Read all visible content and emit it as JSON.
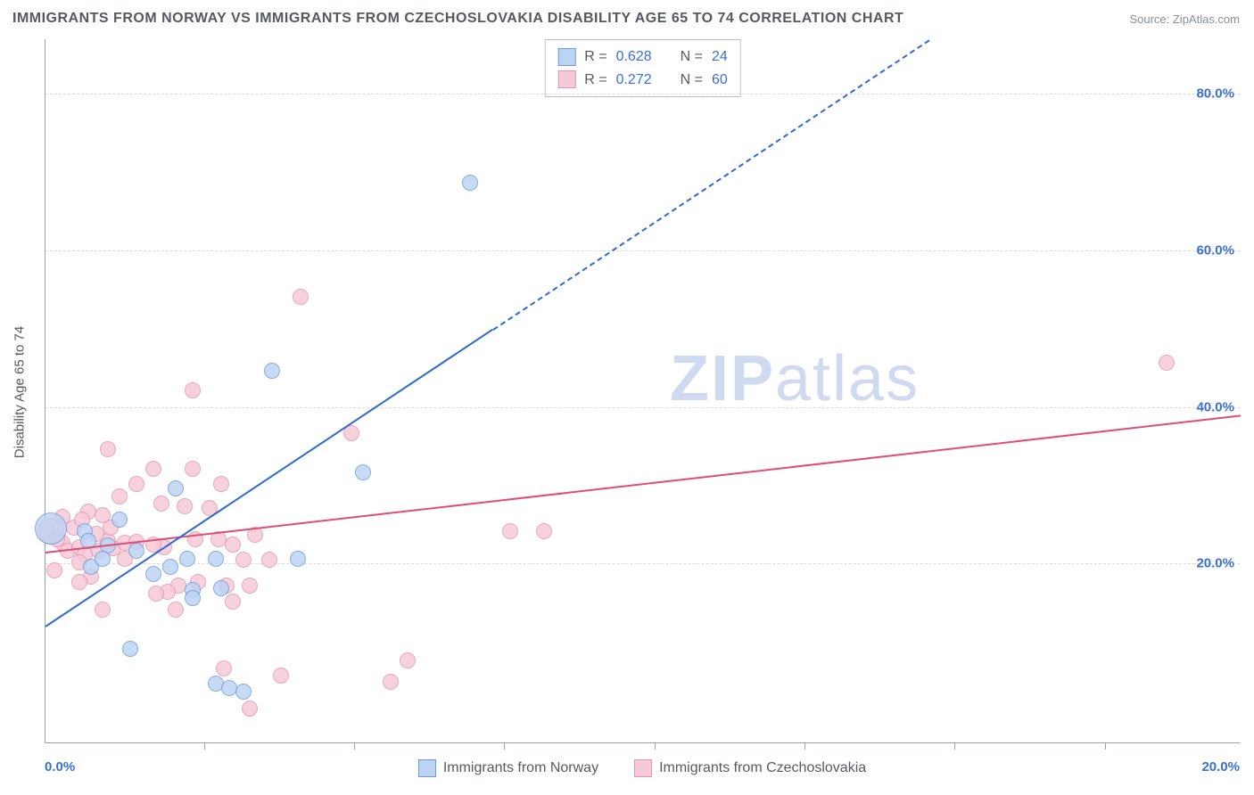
{
  "title": "IMMIGRANTS FROM NORWAY VS IMMIGRANTS FROM CZECHOSLOVAKIA DISABILITY AGE 65 TO 74 CORRELATION CHART",
  "source_label": "Source: ",
  "source_name": "ZipAtlas.com",
  "ylabel": "Disability Age 65 to 74",
  "watermark_a": "ZIP",
  "watermark_b": "atlas",
  "watermark_color": "#cfd9ef",
  "chart": {
    "type": "scatter",
    "background_color": "#ffffff",
    "grid_color": "#d8dbe0",
    "axis_color": "#9aa0aa",
    "xlim": [
      -0.6,
      20.5
    ],
    "ylim": [
      -3,
      87
    ],
    "y_ticks": [
      20,
      40,
      60,
      80
    ],
    "y_tick_labels": [
      "20.0%",
      "40.0%",
      "60.0%",
      "80.0%"
    ],
    "x_ticks_minor": [
      2.2,
      4.85,
      7.5,
      10.15,
      12.8,
      15.45,
      18.1
    ],
    "x_tick_labels": [
      {
        "val": -0.6,
        "text": "0.0%"
      },
      {
        "val": 20.5,
        "text": "20.0%"
      }
    ],
    "y_label_fontsize": 15,
    "tick_label_fontsize": 15,
    "tick_label_color": "#3b6fd6",
    "legend_top": {
      "rows": [
        {
          "swatch_fill": "#bcd3f2",
          "swatch_border": "#6a9de0",
          "r_label": "R =",
          "r_val": "0.628",
          "n_label": "N =",
          "n_val": "24"
        },
        {
          "swatch_fill": "#f6c9d6",
          "swatch_border": "#e594b1",
          "r_label": "R =",
          "r_val": "0.272",
          "n_label": "N =",
          "n_val": "60"
        }
      ]
    },
    "legend_bottom": [
      {
        "swatch_fill": "#bcd3f2",
        "swatch_border": "#6a9de0",
        "label": "Immigrants from Norway"
      },
      {
        "swatch_fill": "#f6c9d6",
        "swatch_border": "#e594b1",
        "label": "Immigrants from Czechoslovakia"
      }
    ],
    "series": [
      {
        "name": "norway",
        "color_fill": "#bcd3f2",
        "color_border": "#6a9de0",
        "marker_radius": 9,
        "points": [
          [
            -0.5,
            24.3,
            18
          ],
          [
            0.7,
            25.5
          ],
          [
            1.3,
            18.5
          ],
          [
            1.6,
            19.5
          ],
          [
            1.0,
            21.5
          ],
          [
            1.9,
            20.5
          ],
          [
            2.4,
            4.5
          ],
          [
            2.9,
            3.5
          ],
          [
            2.65,
            4.0
          ],
          [
            0.9,
            9.0
          ],
          [
            5.0,
            31.5
          ],
          [
            1.7,
            29.5
          ],
          [
            2.4,
            20.5
          ],
          [
            3.85,
            20.5
          ],
          [
            2.0,
            16.5
          ],
          [
            2.5,
            16.7
          ],
          [
            2.0,
            15.5
          ],
          [
            0.1,
            24.0
          ],
          [
            0.15,
            22.8
          ],
          [
            0.5,
            22.2
          ],
          [
            3.4,
            44.5
          ],
          [
            6.9,
            68.5
          ],
          [
            0.2,
            19.5
          ],
          [
            0.4,
            20.5
          ]
        ],
        "trend": {
          "x1": -0.6,
          "y1": 12.0,
          "x2": 7.3,
          "y2": 50.0,
          "x2_dash": 15.0,
          "y2_dash": 87.0,
          "color": "#2f6ad0",
          "width": 2.5
        }
      },
      {
        "name": "czech",
        "color_fill": "#f6c9d6",
        "color_border": "#e594b1",
        "marker_radius": 9,
        "points": [
          [
            -0.5,
            24.0,
            15
          ],
          [
            -0.3,
            22.5
          ],
          [
            -0.2,
            21.5
          ],
          [
            0.0,
            22.0
          ],
          [
            0.1,
            21.0
          ],
          [
            0.35,
            21.5
          ],
          [
            0.6,
            21.8
          ],
          [
            0.5,
            22.7
          ],
          [
            0.8,
            22.5
          ],
          [
            1.0,
            22.6
          ],
          [
            -0.1,
            24.5
          ],
          [
            0.15,
            26.5
          ],
          [
            0.4,
            26.0
          ],
          [
            0.7,
            28.5
          ],
          [
            0.5,
            34.5
          ],
          [
            1.3,
            32.0
          ],
          [
            1.0,
            30.0
          ],
          [
            1.45,
            27.5
          ],
          [
            1.85,
            27.2
          ],
          [
            2.3,
            27.0
          ],
          [
            2.0,
            32.0
          ],
          [
            1.5,
            22.0
          ],
          [
            1.3,
            22.3
          ],
          [
            2.05,
            23.0
          ],
          [
            2.45,
            23.0
          ],
          [
            2.7,
            22.3
          ],
          [
            2.6,
            17.0
          ],
          [
            2.7,
            15.0
          ],
          [
            2.1,
            17.5
          ],
          [
            1.75,
            17.0
          ],
          [
            1.55,
            16.2
          ],
          [
            1.35,
            16.0
          ],
          [
            1.7,
            14.0
          ],
          [
            3.0,
            17.0
          ],
          [
            2.9,
            20.3
          ],
          [
            3.35,
            20.3
          ],
          [
            3.1,
            23.5
          ],
          [
            3.0,
            1.3
          ],
          [
            2.55,
            6.5
          ],
          [
            3.55,
            5.5
          ],
          [
            5.5,
            4.8
          ],
          [
            5.8,
            7.5
          ],
          [
            2.0,
            42.0
          ],
          [
            3.9,
            54.0
          ],
          [
            4.8,
            36.5
          ],
          [
            2.5,
            30.0
          ],
          [
            -0.45,
            19.0
          ],
          [
            0.2,
            18.2
          ],
          [
            0.0,
            17.5
          ],
          [
            0.4,
            14.0
          ],
          [
            0.3,
            23.7
          ],
          [
            0.55,
            24.5
          ],
          [
            0.8,
            20.5
          ],
          [
            7.6,
            24.0
          ],
          [
            8.2,
            24.0
          ],
          [
            19.2,
            45.5
          ],
          [
            -0.3,
            25.8
          ],
          [
            0.05,
            25.5
          ],
          [
            -0.4,
            23.0
          ],
          [
            0.0,
            20.0
          ]
        ],
        "trend": {
          "x1": -0.6,
          "y1": 21.5,
          "x2": 20.5,
          "y2": 39.0,
          "color": "#e14b78",
          "width": 2.5
        }
      }
    ]
  }
}
